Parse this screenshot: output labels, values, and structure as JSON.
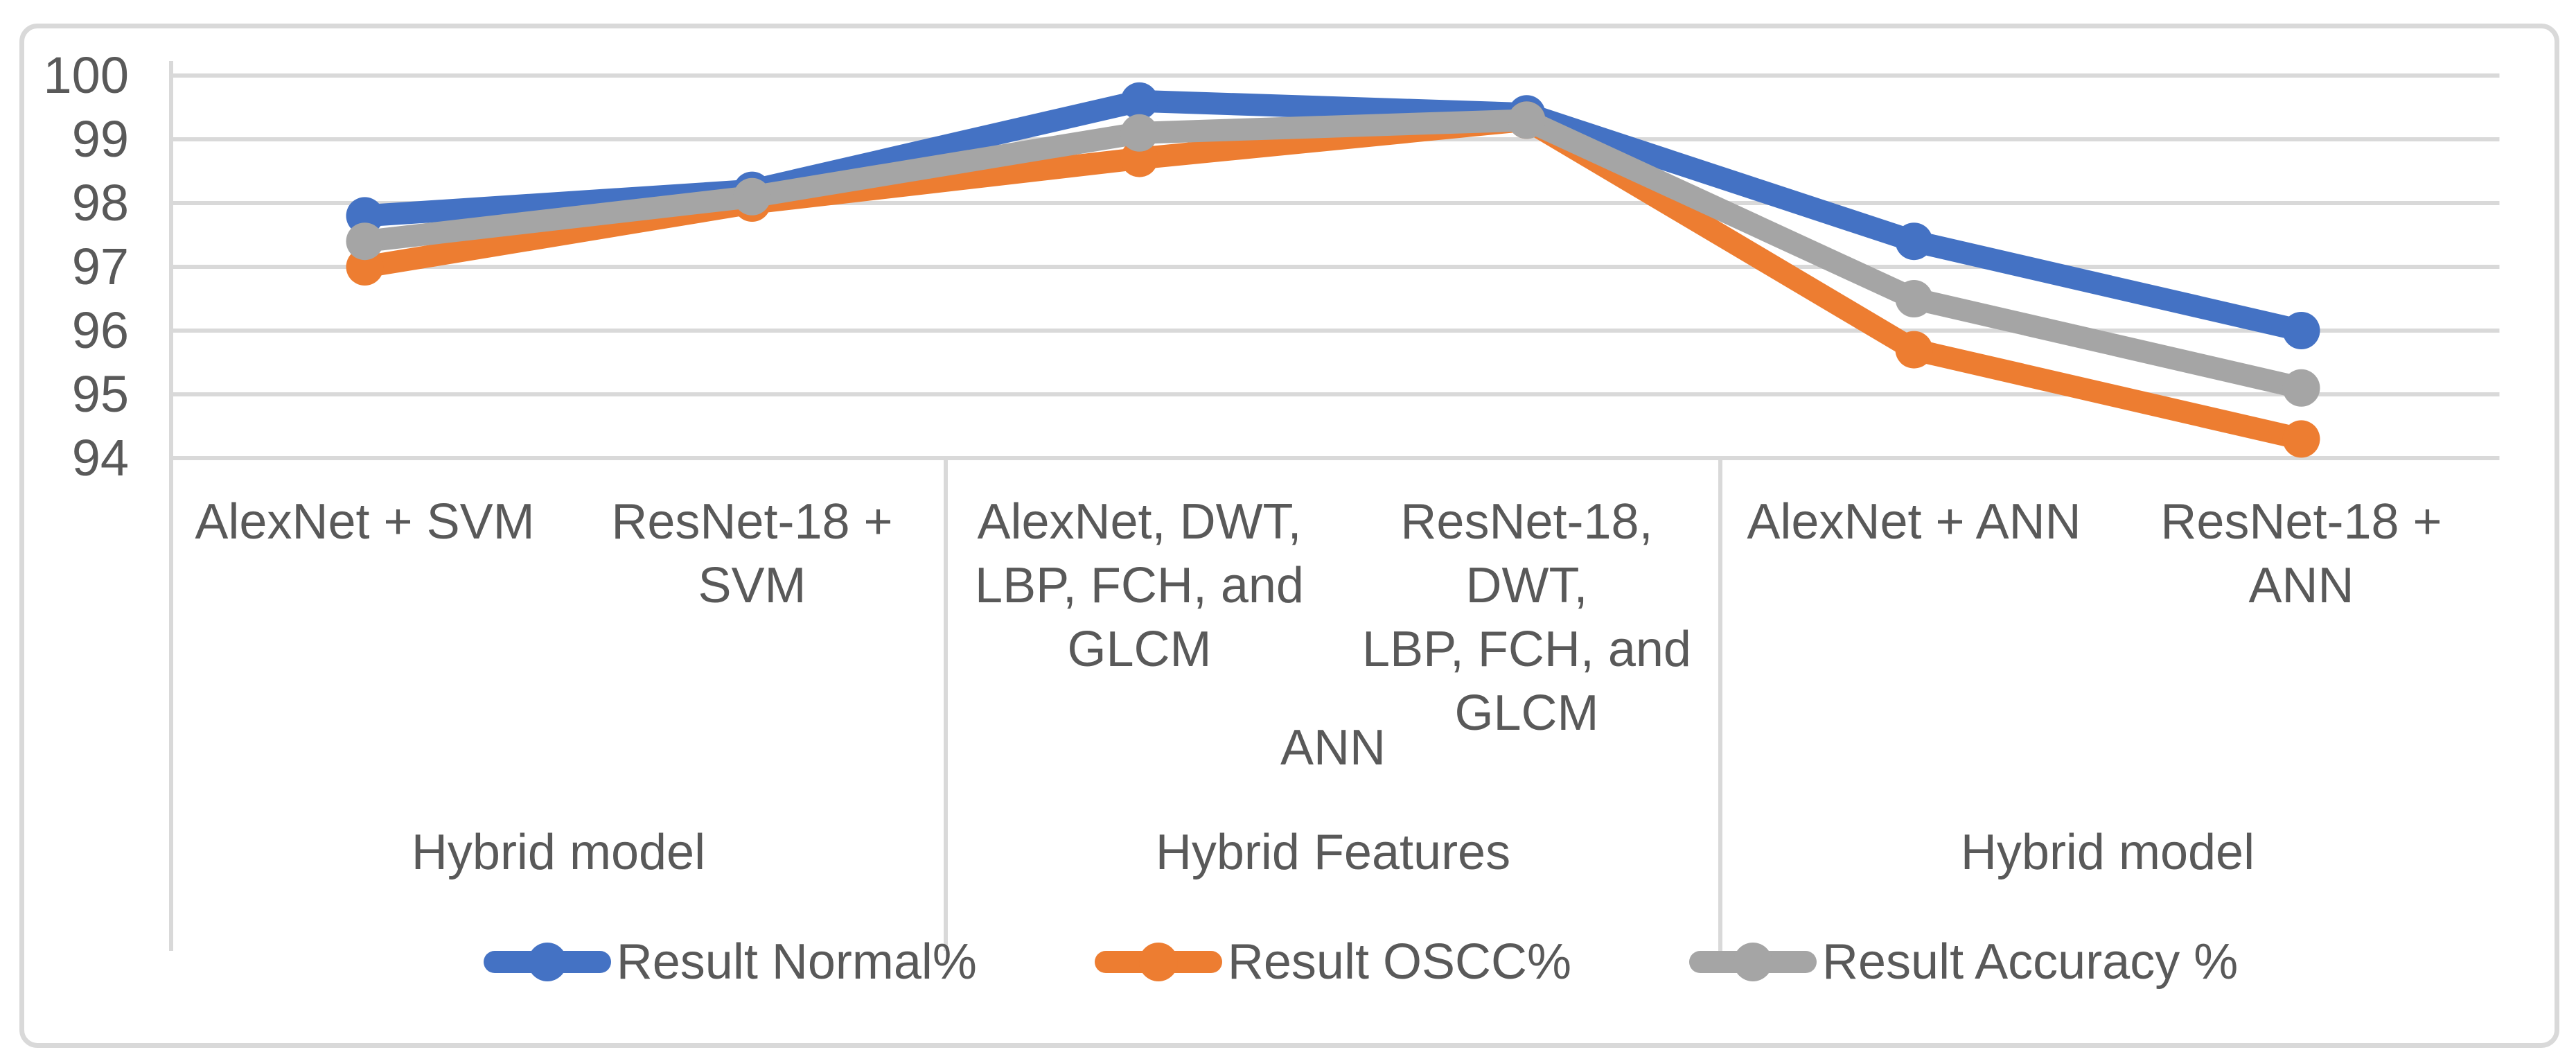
{
  "chart_data": {
    "type": "line",
    "title": "",
    "xlabel": "",
    "ylabel": "",
    "ylim": [
      94,
      100
    ],
    "yticks": [
      100,
      99,
      98,
      97,
      96,
      95,
      94
    ],
    "grid": true,
    "legend_position": "bottom",
    "categories": [
      "AlexNet + SVM",
      "ResNet-18 + SVM",
      "AlexNet, DWT,\nLBP, FCH, and\nGLCM",
      "ResNet-18, DWT,\nLBP, FCH, and\nGLCM",
      "AlexNet + ANN",
      "ResNet-18 + ANN"
    ],
    "axis_row2": {
      "label": "ANN",
      "group_index": 1
    },
    "axis_row3_groups": [
      "Hybrid model",
      "Hybrid Features",
      "Hybrid model"
    ],
    "series": [
      {
        "name": "Result Normal%",
        "color": "#4472C4",
        "values": [
          97.8,
          98.2,
          99.6,
          99.4,
          97.4,
          96.0
        ]
      },
      {
        "name": "Result OSCC%",
        "color": "#ED7D31",
        "values": [
          97.0,
          98.0,
          98.7,
          99.3,
          95.7,
          94.3
        ]
      },
      {
        "name": "Result Accuracy %",
        "color": "#A5A5A5",
        "values": [
          97.4,
          98.1,
          99.1,
          99.3,
          96.5,
          95.1
        ]
      }
    ]
  },
  "colors": {
    "gridline": "#D9D9D9",
    "axis_line": "#D9D9D9",
    "border": "#D9D9D9",
    "text": "#595959",
    "background": "#FFFFFF"
  }
}
